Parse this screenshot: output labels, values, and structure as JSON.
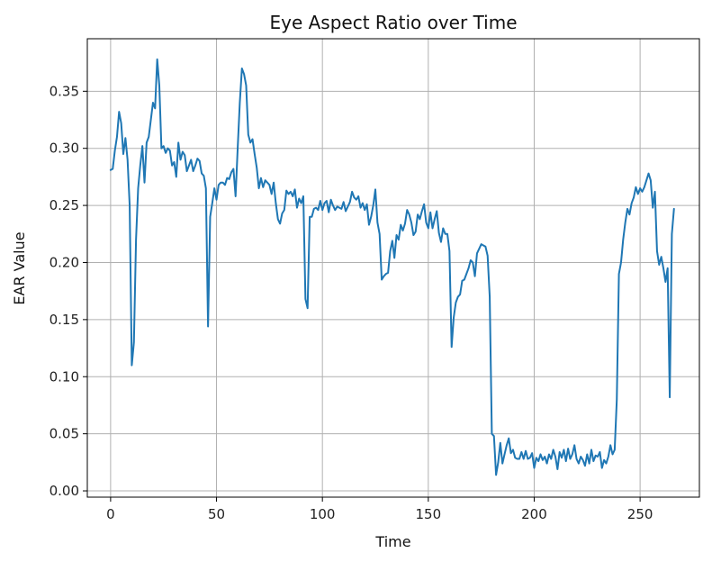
{
  "chart_data": {
    "type": "line",
    "title": "Eye Aspect Ratio over Time",
    "xlabel": "Time",
    "ylabel": "EAR Value",
    "xlim": [
      -11,
      278
    ],
    "ylim": [
      -0.0055,
      0.396
    ],
    "x_ticks": [
      0,
      50,
      100,
      150,
      200,
      250
    ],
    "y_ticks": [
      0.0,
      0.05,
      0.1,
      0.15,
      0.2,
      0.25,
      0.3,
      0.35
    ],
    "x_tick_labels": [
      "0",
      "50",
      "100",
      "150",
      "200",
      "250"
    ],
    "y_tick_labels": [
      "0.00",
      "0.05",
      "0.10",
      "0.15",
      "0.20",
      "0.25",
      "0.30",
      "0.35"
    ],
    "grid": true,
    "series": [
      {
        "color": "#1f77b4",
        "x_start": 0,
        "x_step": 1,
        "values": [
          0.281,
          0.282,
          0.298,
          0.31,
          0.332,
          0.322,
          0.295,
          0.309,
          0.29,
          0.25,
          0.11,
          0.13,
          0.22,
          0.265,
          0.285,
          0.302,
          0.27,
          0.305,
          0.31,
          0.325,
          0.34,
          0.335,
          0.378,
          0.355,
          0.3,
          0.302,
          0.296,
          0.3,
          0.298,
          0.285,
          0.288,
          0.275,
          0.305,
          0.29,
          0.297,
          0.294,
          0.28,
          0.285,
          0.29,
          0.28,
          0.285,
          0.291,
          0.289,
          0.278,
          0.276,
          0.265,
          0.144,
          0.24,
          0.252,
          0.265,
          0.255,
          0.268,
          0.27,
          0.27,
          0.268,
          0.274,
          0.273,
          0.279,
          0.282,
          0.258,
          0.3,
          0.34,
          0.37,
          0.365,
          0.355,
          0.312,
          0.305,
          0.308,
          0.295,
          0.283,
          0.265,
          0.274,
          0.266,
          0.272,
          0.27,
          0.268,
          0.26,
          0.27,
          0.252,
          0.238,
          0.234,
          0.243,
          0.246,
          0.263,
          0.26,
          0.262,
          0.258,
          0.264,
          0.248,
          0.256,
          0.252,
          0.258,
          0.168,
          0.16,
          0.24,
          0.24,
          0.247,
          0.248,
          0.246,
          0.254,
          0.246,
          0.252,
          0.254,
          0.244,
          0.255,
          0.25,
          0.246,
          0.249,
          0.248,
          0.247,
          0.253,
          0.245,
          0.249,
          0.253,
          0.262,
          0.257,
          0.255,
          0.258,
          0.248,
          0.252,
          0.246,
          0.251,
          0.233,
          0.24,
          0.25,
          0.264,
          0.235,
          0.225,
          0.185,
          0.188,
          0.19,
          0.191,
          0.21,
          0.219,
          0.204,
          0.224,
          0.22,
          0.233,
          0.228,
          0.234,
          0.246,
          0.242,
          0.235,
          0.224,
          0.227,
          0.242,
          0.238,
          0.245,
          0.251,
          0.235,
          0.23,
          0.244,
          0.23,
          0.238,
          0.245,
          0.226,
          0.218,
          0.23,
          0.225,
          0.225,
          0.21,
          0.126,
          0.152,
          0.165,
          0.17,
          0.172,
          0.184,
          0.185,
          0.19,
          0.195,
          0.202,
          0.2,
          0.188,
          0.208,
          0.212,
          0.216,
          0.215,
          0.214,
          0.206,
          0.17,
          0.05,
          0.048,
          0.014,
          0.025,
          0.042,
          0.024,
          0.032,
          0.04,
          0.046,
          0.033,
          0.036,
          0.029,
          0.028,
          0.028,
          0.034,
          0.028,
          0.035,
          0.028,
          0.029,
          0.033,
          0.02,
          0.029,
          0.026,
          0.032,
          0.027,
          0.03,
          0.024,
          0.032,
          0.028,
          0.036,
          0.03,
          0.019,
          0.034,
          0.029,
          0.036,
          0.026,
          0.037,
          0.028,
          0.032,
          0.04,
          0.028,
          0.024,
          0.03,
          0.027,
          0.022,
          0.032,
          0.024,
          0.036,
          0.026,
          0.031,
          0.03,
          0.034,
          0.02,
          0.027,
          0.024,
          0.03,
          0.04,
          0.032,
          0.036,
          0.08,
          0.19,
          0.2,
          0.22,
          0.235,
          0.247,
          0.242,
          0.252,
          0.257,
          0.266,
          0.26,
          0.265,
          0.262,
          0.266,
          0.272,
          0.278,
          0.272,
          0.248,
          0.262,
          0.21,
          0.198,
          0.205,
          0.195,
          0.183,
          0.195,
          0.082,
          0.225,
          0.247
        ]
      }
    ]
  }
}
